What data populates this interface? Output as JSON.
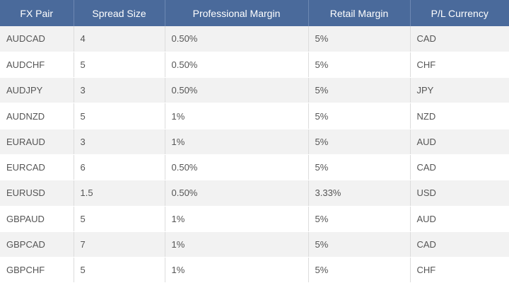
{
  "table": {
    "headers": [
      "FX Pair",
      "Spread Size",
      "Professional Margin",
      "Retail Margin",
      "P/L Currency"
    ],
    "rows": [
      [
        "AUDCAD",
        "4",
        "0.50%",
        "5%",
        "CAD"
      ],
      [
        "AUDCHF",
        "5",
        "0.50%",
        "5%",
        "CHF"
      ],
      [
        "AUDJPY",
        "3",
        "0.50%",
        "5%",
        "JPY"
      ],
      [
        "AUDNZD",
        "5",
        "1%",
        "5%",
        "NZD"
      ],
      [
        "EURAUD",
        "3",
        "1%",
        "5%",
        "AUD"
      ],
      [
        "EURCAD",
        "6",
        "0.50%",
        "5%",
        "CAD"
      ],
      [
        "EURUSD",
        "1.5",
        "0.50%",
        "3.33%",
        "USD"
      ],
      [
        "GBPAUD",
        "5",
        "1%",
        "5%",
        "AUD"
      ],
      [
        "GBPCAD",
        "7",
        "1%",
        "5%",
        "CAD"
      ],
      [
        "GBPCHF",
        "5",
        "1%",
        "5%",
        "CHF"
      ]
    ]
  },
  "colors": {
    "header_bg": "#4a6a9b",
    "header_text": "#ffffff",
    "row_alt_bg": "#f2f2f2",
    "cell_text": "#555555"
  }
}
